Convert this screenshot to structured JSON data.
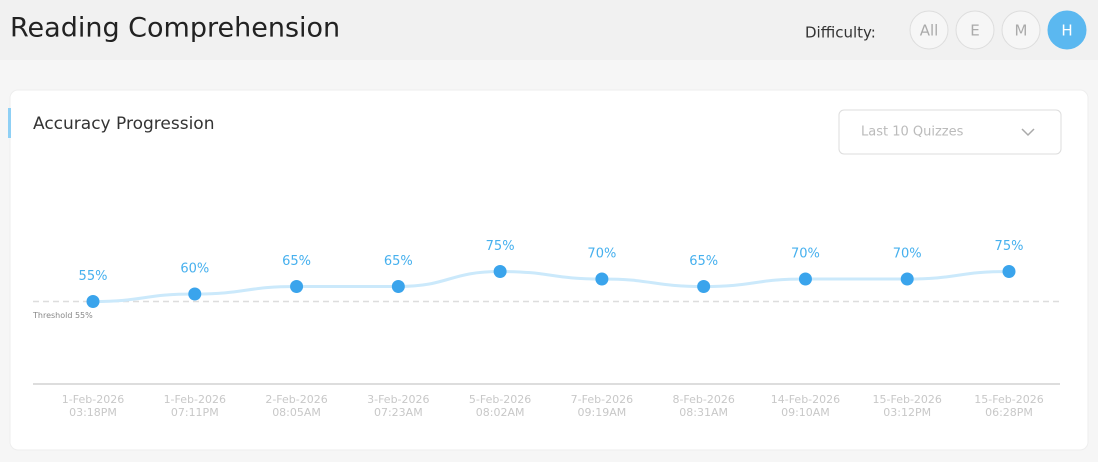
{
  "header": {
    "title": "Reading Comprehension",
    "difficulty_label": "Difficulty:",
    "difficulty_options": [
      "All",
      "E",
      "M",
      "H"
    ],
    "active_index": 3
  },
  "filter": "Last 10 Quizzes",
  "chart_data": {
    "type": "line",
    "title": "Accuracy Progression",
    "categories": [
      [
        "1-Feb-2026",
        "03:18PM"
      ],
      [
        "1-Feb-2026",
        "07:11PM"
      ],
      [
        "2-Feb-2026",
        "08:05AM"
      ],
      [
        "3-Feb-2026",
        "07:23AM"
      ],
      [
        "5-Feb-2026",
        "08:02AM"
      ],
      [
        "7-Feb-2026",
        "09:19AM"
      ],
      [
        "8-Feb-2026",
        "08:31AM"
      ],
      [
        "14-Feb-2026",
        "09:10AM"
      ],
      [
        "15-Feb-2026",
        "03:12PM"
      ],
      [
        "15-Feb-2026",
        "06:28PM"
      ]
    ],
    "series": [
      {
        "name": "Accuracy",
        "color": "#3aa4ec",
        "line_color": "#cbe9fb",
        "values": [
          55,
          60,
          65,
          65,
          75,
          70,
          65,
          70,
          70,
          75
        ],
        "value_labels": [
          "55%",
          "60%",
          "65%",
          "65%",
          "75%",
          "70%",
          "65%",
          "70%",
          "70%",
          "75%"
        ]
      }
    ],
    "threshold": 55,
    "threshold_label": "Threshold 55%",
    "ylim": [
      0,
      100
    ]
  }
}
